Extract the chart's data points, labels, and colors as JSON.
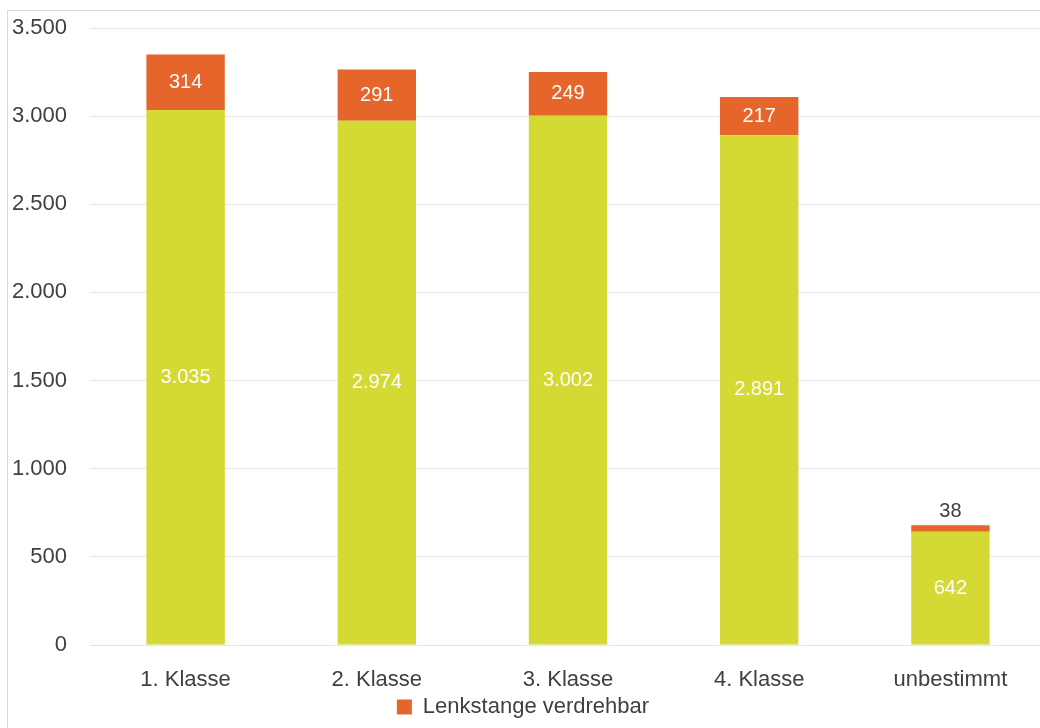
{
  "chart_data": {
    "type": "bar",
    "stacked": true,
    "categories": [
      "1. Klasse",
      "2. Klasse",
      "3. Klasse",
      "4. Klasse",
      "unbestimmt"
    ],
    "series": [
      {
        "color": "#d4da33",
        "values": [
          3035,
          2974,
          3002,
          2891,
          642
        ],
        "value_labels": [
          "3.035",
          "2.974",
          "3.002",
          "2.891",
          "642"
        ]
      },
      {
        "name": "Lenkstange verdrehbar",
        "color": "#e5652a",
        "values": [
          314,
          291,
          249,
          217,
          38
        ],
        "value_labels": [
          "314",
          "291",
          "249",
          "217",
          "38"
        ]
      }
    ],
    "ylim": [
      0,
      3500
    ],
    "yticks": [
      0,
      {
        "value": 500,
        "label": "500"
      },
      {
        "value": 1000,
        "label": "1.000"
      },
      {
        "value": 1500,
        "label": "1.500"
      },
      {
        "value": 2000,
        "label": "2.000"
      },
      {
        "value": 2500,
        "label": "2.500"
      },
      {
        "value": 3000,
        "label": "3.000"
      },
      {
        "value": 3500,
        "label": "3.500"
      }
    ],
    "grid": "y",
    "legend": "bottom"
  }
}
